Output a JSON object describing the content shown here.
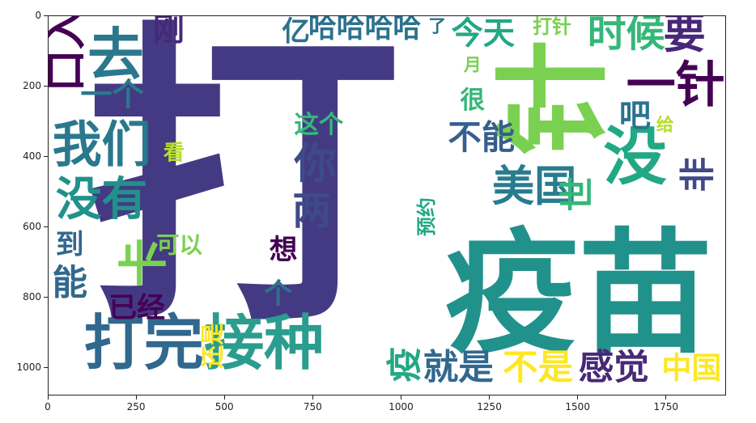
{
  "chart_data": {
    "type": "wordcloud",
    "title": "",
    "xlabel": "",
    "ylabel": "",
    "xlim": [
      0,
      1920
    ],
    "ylim": [
      1080,
      0
    ],
    "x_ticks": [
      "0",
      "250",
      "500",
      "750",
      "1000",
      "1250",
      "1500",
      "1750"
    ],
    "y_ticks": [
      "0",
      "200",
      "400",
      "600",
      "800",
      "1000"
    ],
    "x_tick_values": [
      0,
      250,
      500,
      750,
      1000,
      1250,
      1500,
      1750
    ],
    "y_tick_values": [
      0,
      200,
      400,
      600,
      800,
      1000
    ],
    "words": [
      {
        "text": "打",
        "x": 550,
        "y": 470,
        "size": 900,
        "color": "#443a83",
        "vertical": false
      },
      {
        "text": "疫苗",
        "x": 1500,
        "y": 790,
        "size": 380,
        "color": "#21918c",
        "vertical": false
      },
      {
        "text": "针",
        "x": 1430,
        "y": 230,
        "size": 330,
        "color": "#7ad151",
        "vertical": true
      },
      {
        "text": "打完",
        "x": 270,
        "y": 930,
        "size": 170,
        "color": "#31688e",
        "vertical": false
      },
      {
        "text": "接种",
        "x": 610,
        "y": 930,
        "size": 170,
        "color": "#2a9d8f",
        "vertical": false
      },
      {
        "text": "没",
        "x": 1660,
        "y": 400,
        "size": 180,
        "color": "#22a884",
        "vertical": false
      },
      {
        "text": "去",
        "x": 190,
        "y": 110,
        "size": 160,
        "color": "#2a788e",
        "vertical": false
      },
      {
        "text": "我们",
        "x": 150,
        "y": 365,
        "size": 140,
        "color": "#2a788e",
        "vertical": false
      },
      {
        "text": "没有",
        "x": 150,
        "y": 520,
        "size": 130,
        "color": "#21918c",
        "vertical": false
      },
      {
        "text": "你",
        "x": 755,
        "y": 420,
        "size": 120,
        "color": "#3e4a89",
        "vertical": false
      },
      {
        "text": "两",
        "x": 745,
        "y": 555,
        "size": 110,
        "color": "#3e4a89",
        "vertical": false
      },
      {
        "text": "一针",
        "x": 1775,
        "y": 195,
        "size": 140,
        "color": "#440154",
        "vertical": false
      },
      {
        "text": "时候",
        "x": 1635,
        "y": 50,
        "size": 110,
        "color": "#35b779",
        "vertical": false
      },
      {
        "text": "要",
        "x": 1800,
        "y": 50,
        "size": 120,
        "color": "#482878",
        "vertical": false
      },
      {
        "text": "美国",
        "x": 1375,
        "y": 485,
        "size": 120,
        "color": "#287c8e",
        "vertical": false
      },
      {
        "text": "不能",
        "x": 1225,
        "y": 345,
        "size": 95,
        "color": "#355f8d",
        "vertical": false
      },
      {
        "text": "今天",
        "x": 1230,
        "y": 50,
        "size": 90,
        "color": "#22a884",
        "vertical": false
      },
      {
        "text": "哈哈哈哈",
        "x": 895,
        "y": 35,
        "size": 80,
        "color": "#2c728e",
        "vertical": false
      },
      {
        "text": "亿",
        "x": 700,
        "y": 45,
        "size": 80,
        "color": "#2c728e",
        "vertical": false
      },
      {
        "text": "刚",
        "x": 340,
        "y": 40,
        "size": 90,
        "color": "#482878",
        "vertical": false
      },
      {
        "text": "口入",
        "x": 50,
        "y": 95,
        "size": 120,
        "color": "#440154",
        "vertical": true
      },
      {
        "text": "一个",
        "x": 180,
        "y": 225,
        "size": 90,
        "color": "#2a788e",
        "vertical": false
      },
      {
        "text": "看",
        "x": 355,
        "y": 390,
        "size": 60,
        "color": "#b5de2b",
        "vertical": false
      },
      {
        "text": "这个",
        "x": 765,
        "y": 310,
        "size": 70,
        "color": "#35b779",
        "vertical": false
      },
      {
        "text": "吧",
        "x": 1660,
        "y": 285,
        "size": 90,
        "color": "#2c728e",
        "vertical": false
      },
      {
        "text": "给",
        "x": 1745,
        "y": 310,
        "size": 50,
        "color": "#b5de2b",
        "vertical": false
      },
      {
        "text": "很",
        "x": 1200,
        "y": 240,
        "size": 70,
        "color": "#35b779",
        "vertical": false
      },
      {
        "text": "月",
        "x": 1200,
        "y": 140,
        "size": 50,
        "color": "#7ad151",
        "vertical": false
      },
      {
        "text": "打针",
        "x": 1425,
        "y": 30,
        "size": 55,
        "color": "#7ad151",
        "vertical": false
      },
      {
        "text": "了",
        "x": 1100,
        "y": 30,
        "size": 50,
        "color": "#2c728e",
        "vertical": false
      },
      {
        "text": "预约",
        "x": 1070,
        "y": 570,
        "size": 55,
        "color": "#22a884",
        "vertical": true
      },
      {
        "text": "可以",
        "x": 370,
        "y": 650,
        "size": 65,
        "color": "#7ad151",
        "vertical": false
      },
      {
        "text": "想",
        "x": 665,
        "y": 665,
        "size": 80,
        "color": "#440154",
        "vertical": false
      },
      {
        "text": "个",
        "x": 650,
        "y": 790,
        "size": 80,
        "color": "#2c728e",
        "vertical": false
      },
      {
        "text": "卡",
        "x": 270,
        "y": 700,
        "size": 140,
        "color": "#7ad151",
        "vertical": true
      },
      {
        "text": "到",
        "x": 60,
        "y": 650,
        "size": 80,
        "color": "#31688e",
        "vertical": false
      },
      {
        "text": "能",
        "x": 60,
        "y": 760,
        "size": 100,
        "color": "#31688e",
        "vertical": false
      },
      {
        "text": "已经",
        "x": 250,
        "y": 830,
        "size": 80,
        "color": "#440154",
        "vertical": false
      },
      {
        "text": "还是",
        "x": 465,
        "y": 935,
        "size": 65,
        "color": "#fde725",
        "vertical": true
      },
      {
        "text": "疫",
        "x": 1010,
        "y": 990,
        "size": 100,
        "color": "#22a884",
        "vertical": true
      },
      {
        "text": "就是",
        "x": 1160,
        "y": 1000,
        "size": 100,
        "color": "#31688e",
        "vertical": false
      },
      {
        "text": "不是",
        "x": 1385,
        "y": 1000,
        "size": 100,
        "color": "#fde725",
        "vertical": false
      },
      {
        "text": "感觉",
        "x": 1600,
        "y": 1000,
        "size": 100,
        "color": "#482878",
        "vertical": false
      },
      {
        "text": "中国",
        "x": 1820,
        "y": 1000,
        "size": 85,
        "color": "#fde725",
        "vertical": false
      },
      {
        "text": "世",
        "x": 1500,
        "y": 505,
        "size": 100,
        "color": "#35b779",
        "vertical": true
      },
      {
        "text": "非",
        "x": 1840,
        "y": 450,
        "size": 100,
        "color": "#3e4a89",
        "vertical": true
      }
    ]
  }
}
